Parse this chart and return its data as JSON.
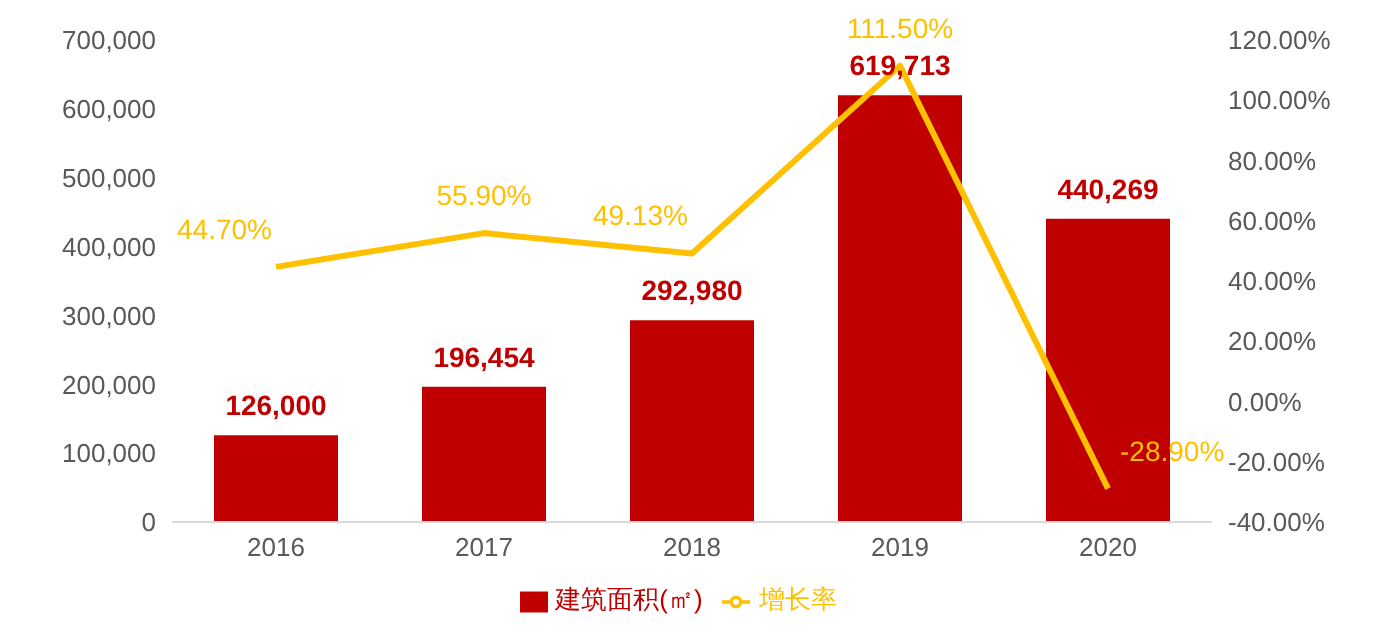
{
  "chart_data": {
    "type": "bar",
    "categories": [
      "2016",
      "2017",
      "2018",
      "2019",
      "2020"
    ],
    "series": [
      {
        "name": "建筑面积(㎡)",
        "color": "#c00000",
        "values": [
          126000,
          196454,
          292980,
          619713,
          440269
        ],
        "value_labels": [
          "126,000",
          "196,454",
          "292,980",
          "619,713",
          "440,269"
        ]
      },
      {
        "name": "增长率",
        "type": "line",
        "axis": "y2",
        "color": "#ffc000",
        "values": [
          44.7,
          55.9,
          49.13,
          111.5,
          -28.9
        ],
        "value_labels": [
          "44.70%",
          "55.90%",
          "49.13%",
          "111.50%",
          "-28.90%"
        ]
      }
    ],
    "ylim": [
      0,
      700000
    ],
    "yticks": [
      0,
      {
        "value": 100000,
        "label": "100,000"
      },
      {
        "value": 200000,
        "label": "200,000"
      },
      {
        "value": 300000,
        "label": "300,000"
      },
      {
        "value": 400000,
        "label": "400,000"
      },
      {
        "value": 500000,
        "label": "500,000"
      },
      {
        "value": 600000,
        "label": "600,000"
      },
      {
        "value": 700000,
        "label": "700,000"
      }
    ],
    "y2lim": [
      -40,
      120
    ],
    "y2ticks": [
      {
        "value": -40,
        "label": "-40.00%"
      },
      {
        "value": -20,
        "label": "-20.00%"
      },
      {
        "value": 0,
        "label": "0.00%"
      },
      {
        "value": 20,
        "label": "20.00%"
      },
      {
        "value": 40,
        "label": "40.00%"
      },
      {
        "value": 60,
        "label": "60.00%"
      },
      {
        "value": 80,
        "label": "80.00%"
      },
      {
        "value": 100,
        "label": "100.00%"
      },
      {
        "value": 120,
        "label": "120.00%"
      }
    ],
    "legend": "bottom",
    "marker": "none",
    "grid": false
  }
}
